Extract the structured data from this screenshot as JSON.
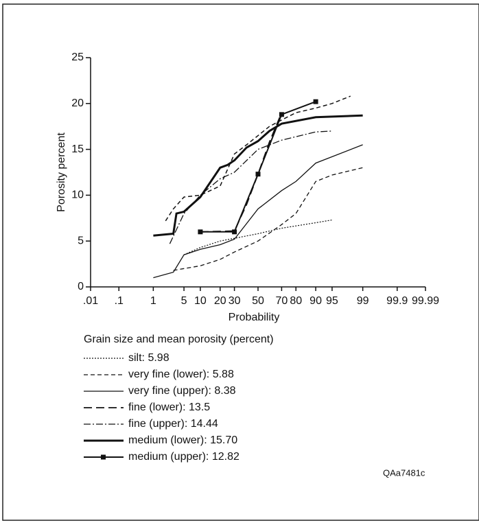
{
  "chart_data": {
    "type": "line",
    "xscale": "probability",
    "xlabel": "Probability",
    "ylabel": "Porosity percent",
    "legend_title": "Grain size and mean porosity (percent)",
    "note": "QAa7481c",
    "xlim": [
      0.01,
      99.99
    ],
    "xticks": [
      {
        "value": 0.01,
        "label": ".01"
      },
      {
        "value": 0.1,
        "label": ".1"
      },
      1,
      5,
      10,
      20,
      30,
      50,
      70,
      80,
      90,
      95,
      99,
      99.9,
      99.99
    ],
    "ylim": [
      0,
      25
    ],
    "yticks": [
      0,
      5,
      10,
      15,
      20,
      25
    ],
    "series": [
      {
        "name": "silt: 5.98",
        "color": "#111",
        "width": 1.2,
        "dash": "2,2",
        "x": [
          5,
          10,
          20,
          30,
          50,
          70,
          90,
          95
        ],
        "values": [
          3.5,
          4.3,
          5.0,
          5.3,
          5.8,
          6.4,
          7.0,
          7.3
        ]
      },
      {
        "name": "very fine (lower): 5.88",
        "color": "#111",
        "width": 1.3,
        "dash": "6,4",
        "x": [
          3,
          5,
          10,
          20,
          30,
          50,
          70,
          80,
          90,
          95,
          99
        ],
        "values": [
          1.8,
          2.0,
          2.3,
          3.0,
          3.8,
          5.0,
          6.8,
          8.0,
          11.5,
          12.2,
          13.0
        ]
      },
      {
        "name": "very fine (upper): 8.38",
        "color": "#111",
        "width": 1.3,
        "dash": "",
        "x": [
          1,
          3,
          5,
          10,
          20,
          30,
          50,
          70,
          80,
          90,
          99
        ],
        "values": [
          1.0,
          1.6,
          3.5,
          4.1,
          4.6,
          5.2,
          8.5,
          10.5,
          11.5,
          13.5,
          15.5
        ]
      },
      {
        "name": "fine (lower): 13.5",
        "color": "#111",
        "width": 1.8,
        "dash": "12,6",
        "x": [
          10,
          30,
          40,
          50,
          60,
          70
        ],
        "values": [
          6.0,
          6.1,
          9.0,
          12.3,
          15.8,
          19.0
        ]
      },
      {
        "name": "fine (upper): 14.44",
        "color": "#111",
        "width": 1.3,
        "dash": "10,3,2,3",
        "x": [
          2.5,
          5,
          10,
          20,
          30,
          50,
          70,
          90,
          95
        ],
        "values": [
          4.7,
          8.0,
          10.0,
          11.8,
          12.5,
          15.0,
          16.0,
          16.9,
          17.0
        ]
      },
      {
        "name": "medium (lower): 15.70",
        "color": "#111",
        "width": 3,
        "dash": "",
        "x": [
          1,
          3,
          3.5,
          5,
          10,
          20,
          25,
          30,
          40,
          50,
          60,
          70,
          90,
          99
        ],
        "values": [
          5.6,
          5.8,
          8.0,
          8.2,
          9.8,
          13.0,
          13.3,
          13.8,
          15.2,
          15.9,
          17.0,
          17.8,
          18.5,
          18.7
        ]
      },
      {
        "name": "medium (upper): 12.82",
        "color": "#111",
        "width": 2,
        "dash": "",
        "marker": "square",
        "x": [
          10,
          30,
          50,
          70,
          90
        ],
        "values": [
          6.0,
          6.0,
          12.3,
          18.8,
          20.2
        ]
      },
      {
        "color": "#111",
        "width": 1.5,
        "dash": "6,4",
        "x": [
          2,
          3,
          5,
          10,
          20,
          30,
          40,
          50,
          60,
          70,
          80,
          90,
          95,
          98
        ],
        "values": [
          7.2,
          8.5,
          9.8,
          10.0,
          11.0,
          14.5,
          15.5,
          16.5,
          17.5,
          18.2,
          19.0,
          19.5,
          20.0,
          20.8
        ]
      }
    ]
  }
}
